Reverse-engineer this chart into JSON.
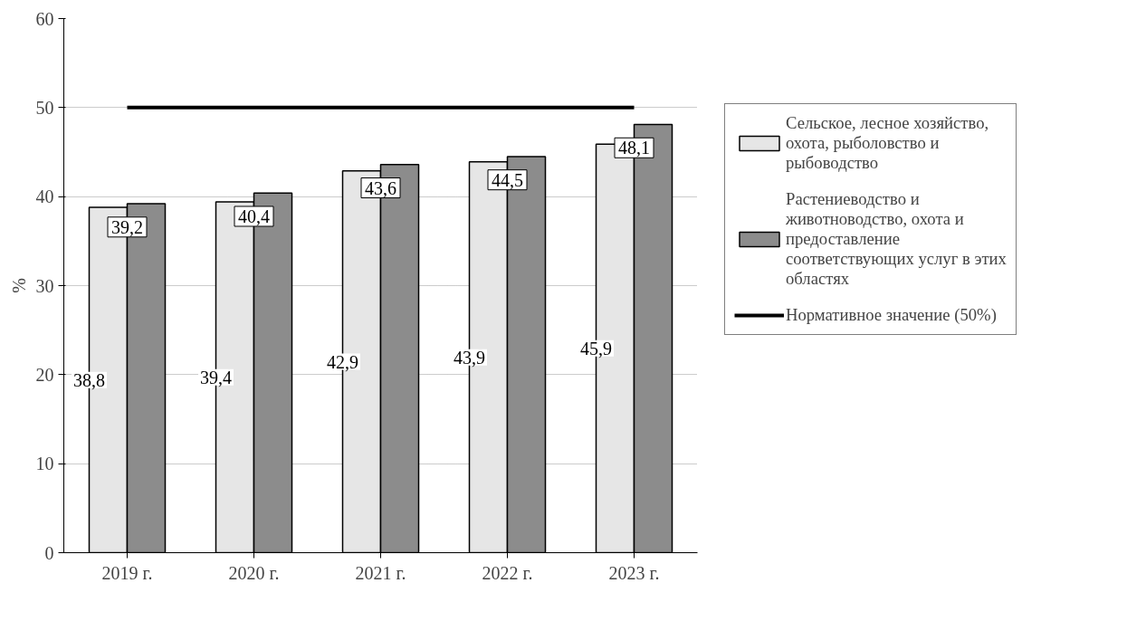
{
  "chart_data": {
    "type": "bar",
    "ylabel": "%",
    "categories": [
      "2019 г.",
      "2020 г.",
      "2021 г.",
      "2022 г.",
      "2023 г."
    ],
    "series": [
      {
        "name": "Сельское, лесное хозяйство, охота, рыболовство и рыбоводство",
        "color": "#e6e6e6",
        "values": [
          38.8,
          39.4,
          42.9,
          43.9,
          45.9
        ],
        "value_labels": [
          "38,8",
          "39,4",
          "42,9",
          "43,9",
          "45,9"
        ]
      },
      {
        "name": "Растениеводство и животноводство, охота и предоставление соответствующих услуг в этих областях",
        "color": "#8c8c8c",
        "values": [
          39.2,
          40.4,
          43.6,
          44.5,
          48.1
        ],
        "value_labels": [
          "39,2",
          "40,4",
          "43,6",
          "44,5",
          "48,1"
        ]
      },
      {
        "name": "Нормативное значение (50%)",
        "type": "line",
        "color": "#000000",
        "values": [
          50,
          50,
          50,
          50,
          50
        ]
      }
    ],
    "ylim": [
      0,
      60
    ],
    "yticks": [
      0,
      10,
      20,
      30,
      40,
      50,
      60
    ],
    "grid": "y",
    "legend": "right"
  }
}
